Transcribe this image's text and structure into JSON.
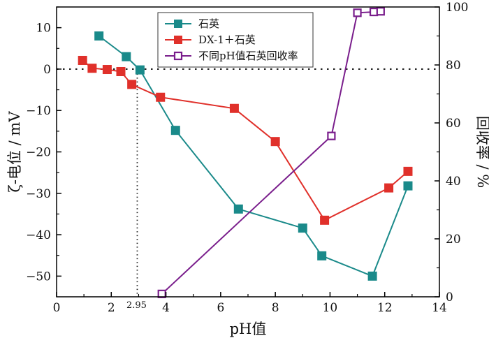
{
  "chart_data": {
    "type": "line",
    "title": "",
    "xlabel": "pH值",
    "ylabel": "ζ-电位 / mV",
    "y2label": "回收率 / %",
    "xlim": [
      0,
      14
    ],
    "ylim": [
      -55,
      15
    ],
    "y2lim": [
      0,
      100
    ],
    "x_ticks": [
      "0",
      "2",
      "4",
      "6",
      "8",
      "10",
      "12",
      "14"
    ],
    "y_ticks": [
      "10",
      "0",
      "-10",
      "-20",
      "-30",
      "-40",
      "-50"
    ],
    "y2_ticks": [
      "0",
      "20",
      "40",
      "60",
      "80",
      "100"
    ],
    "series": [
      {
        "name": "石英",
        "axis": "left",
        "color": "#1a8a8a",
        "marker": "square-filled",
        "x": [
          1.55,
          2.55,
          3.05,
          4.35,
          6.65,
          9.0,
          9.7,
          11.55,
          12.85
        ],
        "y": [
          8.0,
          3.0,
          -0.2,
          -14.8,
          -33.8,
          -38.4,
          -45.1,
          -50.0,
          -28.2
        ]
      },
      {
        "name": "DX-1＋石英",
        "axis": "left",
        "color": "#e0302a",
        "marker": "square-filled",
        "x": [
          0.95,
          1.3,
          1.85,
          2.35,
          2.75,
          3.8,
          6.5,
          8.0,
          9.8,
          12.15,
          12.85
        ],
        "y": [
          2.1,
          0.2,
          -0.1,
          -0.6,
          -3.7,
          -6.8,
          -9.5,
          -17.5,
          -36.5,
          -28.7,
          -24.7
        ]
      },
      {
        "name": "不同pH值石英回收率",
        "axis": "right",
        "color": "#7a1e8c",
        "marker": "square-open",
        "x": [
          3.85,
          10.05,
          11.0,
          11.6,
          11.85
        ],
        "y": [
          1.0,
          55.5,
          98.0,
          98.3,
          98.5
        ]
      }
    ],
    "reference_lines": {
      "zero_line_y": 0,
      "iep_x": 2.95,
      "iep_label": "2.95"
    },
    "legend_position": "top-center"
  }
}
